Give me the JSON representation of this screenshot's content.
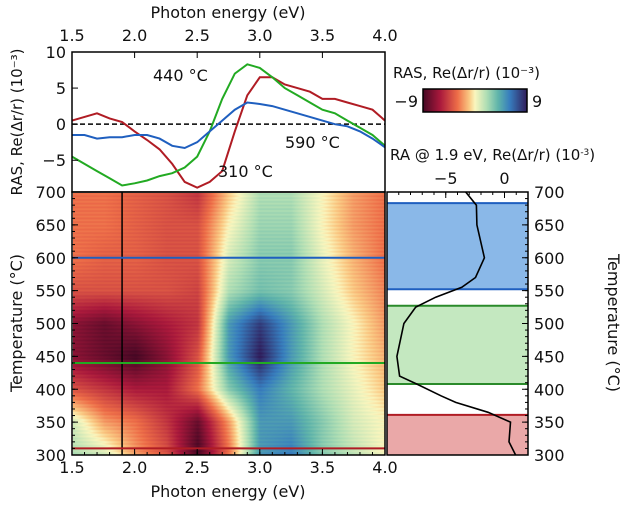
{
  "chart_data": [
    {
      "type": "line",
      "panel": "spectra",
      "xlabel": "Photon energy (eV)",
      "ylabel": "RAS, Re(Δr/r) (10⁻³)",
      "xlim": [
        1.5,
        4.0
      ],
      "ylim": [
        -9.4,
        10
      ],
      "xticks": [
        "1.5",
        "2.0",
        "2.5",
        "3.0",
        "3.5",
        "4.0"
      ],
      "yticks": [
        "10",
        "5",
        "0",
        "−5"
      ],
      "zero_line": "dashed",
      "x": [
        1.5,
        1.6,
        1.7,
        1.8,
        1.9,
        2.0,
        2.1,
        2.2,
        2.3,
        2.4,
        2.5,
        2.6,
        2.7,
        2.8,
        2.9,
        3.0,
        3.1,
        3.2,
        3.3,
        3.4,
        3.5,
        3.6,
        3.7,
        3.8,
        3.9,
        4.0
      ],
      "series": [
        {
          "name": "310 °C",
          "color": "#b01c24",
          "values": [
            0.5,
            1,
            1.5,
            0.8,
            0.3,
            -1,
            -2.2,
            -3.5,
            -5.5,
            -8,
            -8.8,
            -8,
            -6.5,
            -1,
            4,
            6.5,
            6.5,
            5.5,
            5,
            4.5,
            3.5,
            3.5,
            3,
            2.5,
            2,
            0.5
          ]
        },
        {
          "name": "440 °C",
          "color": "#22aa22",
          "values": [
            -4.5,
            -5.5,
            -6.5,
            -7.5,
            -8.5,
            -8.2,
            -7.8,
            -7.2,
            -6.8,
            -6,
            -4.5,
            -1,
            3.5,
            7,
            8.3,
            7.8,
            6.5,
            5,
            4,
            3,
            2,
            1.5,
            0.5,
            -0.5,
            -1.5,
            -3
          ]
        },
        {
          "name": "590 °C",
          "color": "#1f5fbf",
          "values": [
            -1.5,
            -1.5,
            -2,
            -1.8,
            -1.8,
            -1.5,
            -1.5,
            -2,
            -3,
            -3.3,
            -2.5,
            -1,
            0.5,
            2,
            3,
            2.8,
            2.5,
            2,
            1.5,
            1,
            0.5,
            0,
            -0.3,
            -1,
            -2,
            -3.2
          ]
        }
      ]
    },
    {
      "type": "heatmap",
      "panel": "map",
      "xlabel": "Photon energy (eV)",
      "ylabel": "Temperature (°C)",
      "xlim": [
        1.5,
        4.0
      ],
      "ylim": [
        300,
        700
      ],
      "xticks": [
        "1.5",
        "2.0",
        "2.5",
        "3.0",
        "3.5",
        "4.0"
      ],
      "yticks": [
        "300",
        "350",
        "400",
        "450",
        "500",
        "550",
        "600",
        "650",
        "700"
      ],
      "colorbar": {
        "label": "RAS, Re(Δr/r) (10⁻³)",
        "min_label": "−9",
        "max_label": "9",
        "range": [
          -9,
          9
        ],
        "colormap": "spectral"
      },
      "energies": [
        1.5,
        1.75,
        2.0,
        2.25,
        2.5,
        2.75,
        3.0,
        3.25,
        3.5,
        3.75,
        4.0
      ],
      "temperatures": [
        700,
        650,
        600,
        550,
        500,
        450,
        400,
        350,
        300
      ],
      "values": [
        [
          -3,
          -3,
          -3.5,
          -4,
          -5,
          -1,
          2,
          2,
          0,
          -2,
          -3
        ],
        [
          -3,
          -3,
          -3.5,
          -4,
          -4,
          0,
          2.5,
          2.5,
          0,
          -2,
          -3
        ],
        [
          -3,
          -3.5,
          -3.5,
          -4,
          -4,
          1,
          3,
          3,
          0.5,
          -1.5,
          -3
        ],
        [
          -4,
          -4,
          -4,
          -4,
          -4.5,
          2,
          3.5,
          3,
          1,
          -1,
          -2.5
        ],
        [
          -7,
          -8,
          -7,
          -6,
          -5,
          5,
          8,
          5,
          2,
          0,
          -2
        ],
        [
          -7,
          -8,
          -9,
          -7,
          -4,
          5,
          9,
          5,
          2,
          0,
          -1.5
        ],
        [
          -4,
          -5,
          -6,
          -6,
          -3,
          3,
          6,
          4,
          2,
          0.5,
          -1
        ],
        [
          1,
          -2,
          -3,
          -5,
          -8,
          -2,
          5,
          5,
          3,
          1,
          0
        ],
        [
          2,
          1,
          -2,
          -4,
          -9,
          -3,
          5,
          6,
          3,
          1.5,
          0
        ]
      ],
      "markers": {
        "vertical_energy": 1.9,
        "horizontal": [
          {
            "temperature": 600,
            "color": "#1f5fbf"
          },
          {
            "temperature": 440,
            "color": "#22aa22"
          },
          {
            "temperature": 310,
            "color": "#b01c24"
          }
        ]
      }
    },
    {
      "type": "line",
      "panel": "ra-trace",
      "title": "RA @ 1.9 eV, Re(Δr/r) (10⁻³)",
      "ylabel": "Temperature (°C)",
      "xlim": [
        -10,
        2
      ],
      "ylim": [
        300,
        700
      ],
      "xticks": [
        "−5",
        "0"
      ],
      "xtick_values": [
        -5,
        0
      ],
      "yticks": [
        "700",
        "650",
        "600",
        "550",
        "500",
        "450",
        "400",
        "350",
        "300"
      ],
      "temperatures": [
        700,
        680,
        650,
        600,
        570,
        555,
        540,
        525,
        500,
        450,
        420,
        408,
        390,
        380,
        365,
        350,
        320,
        300
      ],
      "values": [
        -3.3,
        -2.5,
        -2.2,
        -1.8,
        -2.5,
        -3.5,
        -6,
        -7.5,
        -8.5,
        -9.3,
        -8.8,
        -7.5,
        -5.5,
        -4,
        -1.5,
        0.5,
        0.5,
        0.8
      ],
      "bands": [
        {
          "from": 552,
          "to": 683,
          "color": "#8ab8e8",
          "edge": "#1f5fbf"
        },
        {
          "from": 408,
          "to": 527,
          "color": "#c4e8c0",
          "edge": "#2a8a2a"
        },
        {
          "from": 300,
          "to": 361,
          "color": "#eaa8a8",
          "edge": "#b01c24"
        }
      ]
    }
  ]
}
